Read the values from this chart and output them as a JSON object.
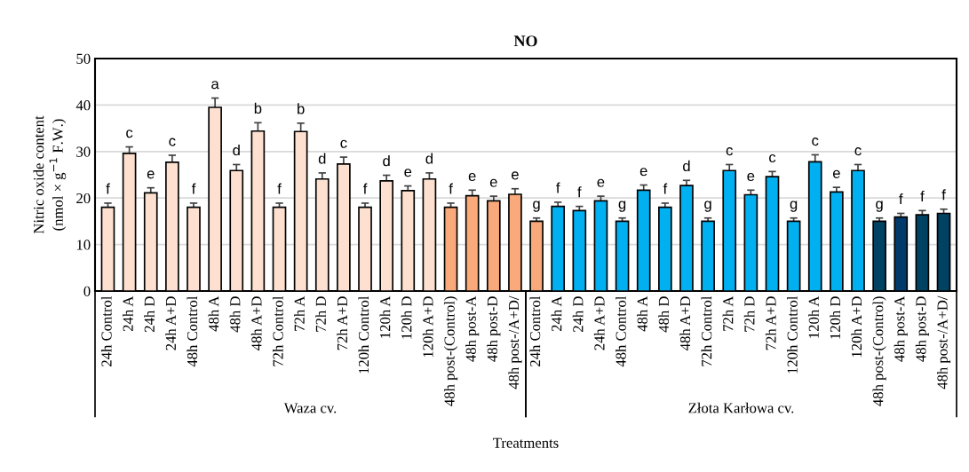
{
  "chart_data": {
    "type": "bar",
    "title": "NO",
    "xlabel": "Treatments",
    "ylabel": "Nitric oxide content\n(nmol × g$^{−1}$ F.W.)",
    "categories": [
      "24h Control",
      "24h A",
      "24h D",
      "24h A+D",
      "48h Control",
      "48h A",
      "48h D",
      "48h A+D",
      "72h Control",
      "72h A",
      "72h D",
      "72h A+D",
      "120h Control",
      "120h A",
      "120h D",
      "120h A+D",
      "48h post-(Control)",
      "48h post-A",
      "48h post-D",
      "48h post-/A+D/",
      "24h Control",
      "24h A",
      "24h D",
      "24h A+D",
      "48h Control",
      "48h A",
      "48h D",
      "48h A+D",
      "72h Control",
      "72h A",
      "72h D",
      "72h A+D",
      "120h Control",
      "120h A",
      "120h D",
      "120h A+D",
      "48h post-(Control)",
      "48h post-A",
      "48h post-D",
      "48h post-/A+D/"
    ],
    "values": [
      18.0,
      29.6,
      21.1,
      27.7,
      18.0,
      39.5,
      25.9,
      34.4,
      18.0,
      34.3,
      24.1,
      27.3,
      18.0,
      23.7,
      21.6,
      24.1,
      18.0,
      20.5,
      19.4,
      20.8,
      15.0,
      18.2,
      17.3,
      19.4,
      15.0,
      21.7,
      18.0,
      22.7,
      15.0,
      25.9,
      20.7,
      24.6,
      15.0,
      27.8,
      21.3,
      25.9,
      15.0,
      15.9,
      16.4,
      16.7
    ],
    "errors": [
      0.9,
      1.4,
      1.1,
      1.5,
      0.9,
      2.0,
      1.3,
      1.8,
      0.9,
      1.8,
      1.3,
      1.5,
      0.9,
      1.2,
      1.0,
      1.3,
      0.9,
      1.2,
      1.0,
      1.2,
      0.7,
      0.9,
      0.9,
      1.0,
      0.7,
      1.1,
      0.9,
      1.1,
      0.7,
      1.3,
      1.0,
      1.1,
      0.7,
      1.5,
      1.0,
      1.3,
      0.7,
      0.8,
      0.9,
      0.9
    ],
    "value_labels": [
      "f",
      "c",
      "e",
      "c",
      "f",
      "a",
      "d",
      "b",
      "f",
      "b",
      "d",
      "c",
      "f",
      "d",
      "e",
      "d",
      "f",
      "e",
      "e",
      "e",
      "g",
      "f",
      "f",
      "e",
      "g",
      "e",
      "f",
      "d",
      "g",
      "c",
      "e",
      "c",
      "g",
      "c",
      "e",
      "c",
      "g",
      "f",
      "f",
      "f"
    ],
    "colors": [
      "#fde0cf",
      "#fde0cf",
      "#fde0cf",
      "#fde0cf",
      "#fde0cf",
      "#fde0cf",
      "#fde0cf",
      "#fde0cf",
      "#fde0cf",
      "#fde0cf",
      "#fde0cf",
      "#fde0cf",
      "#fde0cf",
      "#fde0cf",
      "#fde0cf",
      "#fde0cf",
      "#f9a97a",
      "#f9a97a",
      "#f9a97a",
      "#f9a97a",
      "#f9a97a",
      "#00b0f0",
      "#00b0f0",
      "#00b0f0",
      "#00b0f0",
      "#00b0f0",
      "#00b0f0",
      "#00b0f0",
      "#00b0f0",
      "#00b0f0",
      "#00b0f0",
      "#00b0f0",
      "#00b0f0",
      "#00b0f0",
      "#00b0f0",
      "#00b0f0",
      "#004262",
      "#003a6b",
      "#004262",
      "#004262"
    ],
    "annotations": [
      "Waza cv.",
      "Złota Karłowa cv."
    ],
    "ylim": [
      0,
      50
    ],
    "yticks": [
      0,
      10,
      20,
      30,
      40,
      50
    ],
    "grid": "y",
    "legend": false
  }
}
